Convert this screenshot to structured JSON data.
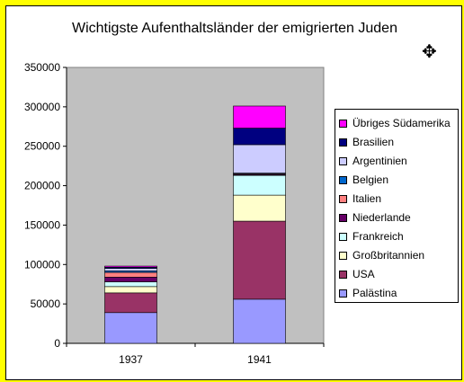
{
  "chart_data": {
    "type": "bar",
    "stacked": true,
    "title": "Wichtigste Aufenthaltsländer der emigrierten Juden",
    "categories": [
      "1937",
      "1941"
    ],
    "ylim": [
      0,
      350000
    ],
    "yticks": [
      0,
      50000,
      100000,
      150000,
      200000,
      250000,
      300000,
      350000
    ],
    "ytick_labels": [
      "0",
      "50000",
      "100000",
      "150000",
      "200000",
      "250000",
      "300000",
      "350000"
    ],
    "grid": false,
    "plot_background": "#c0c0c0",
    "legend_position": "right",
    "series": [
      {
        "name": "Palästina",
        "color": "#9999ff",
        "values": [
          39000,
          56000
        ]
      },
      {
        "name": "USA",
        "color": "#993366",
        "values": [
          25000,
          99000
        ]
      },
      {
        "name": "Großbritannien",
        "color": "#ffffcc",
        "values": [
          8000,
          33000
        ]
      },
      {
        "name": "Frankreich",
        "color": "#ccffff",
        "values": [
          6000,
          25000
        ]
      },
      {
        "name": "Niederlande",
        "color": "#660066",
        "values": [
          6000,
          1000
        ]
      },
      {
        "name": "Italien",
        "color": "#ff8080",
        "values": [
          6000,
          1000
        ]
      },
      {
        "name": "Belgien",
        "color": "#0066cc",
        "values": [
          2000,
          1000
        ]
      },
      {
        "name": "Argentinien",
        "color": "#ccccff",
        "values": [
          3000,
          36000
        ]
      },
      {
        "name": "Brasilien",
        "color": "#000080",
        "values": [
          1500,
          21000
        ]
      },
      {
        "name": "Übriges Südamerika",
        "color": "#ff00ff",
        "values": [
          1500,
          28000
        ]
      }
    ]
  },
  "cursor_icon": "move-cursor-icon"
}
